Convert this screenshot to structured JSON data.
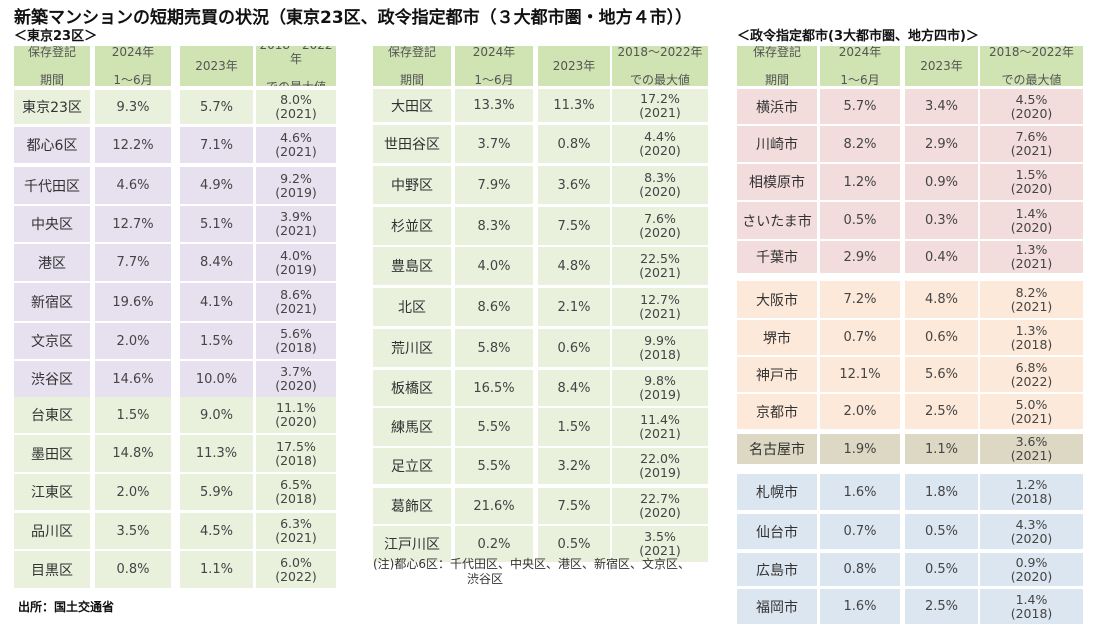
{
  "title": "新築マンションの短期売買の状況（東京23区、政令指定都市（３大都市圏・地方４市））",
  "tokyo_label": "＜東京23区＞",
  "cities_label": "＜政令指定都市(3大都市圏、地方四市)＞",
  "source": "出所：国土交通省",
  "note_line1": "(注)都心6区：千代田区、中央区、港区、新宿区、文京区、",
  "note_line2": "渋谷区",
  "headers": {
    "name": "保存登記期間",
    "v2024": "2024年1～6月",
    "v2023": "2023年",
    "max": "2018～2022年での最大値"
  },
  "colors": {
    "header": "#d0e3b3",
    "green": "#e9f0dc",
    "purple": "#e6e0ef",
    "pink": "#f2dcdc",
    "orange": "#fde9d9",
    "olive": "#ddd8c3",
    "blue": "#dce6f1"
  },
  "left_table": [
    {
      "name": "東京23区",
      "v2024": "9.3%",
      "v2023": "5.7%",
      "max": "8.0%",
      "year": "(2021)",
      "color": "green"
    },
    {
      "name": "都心6区",
      "v2024": "12.2%",
      "v2023": "7.1%",
      "max": "4.6%",
      "year": "(2021)",
      "color": "purple"
    },
    {
      "name": "千代田区",
      "v2024": "4.6%",
      "v2023": "4.9%",
      "max": "9.2%",
      "year": "(2019)",
      "color": "purple"
    },
    {
      "name": "中央区",
      "v2024": "12.7%",
      "v2023": "5.1%",
      "max": "3.9%",
      "year": "(2021)",
      "color": "purple"
    },
    {
      "name": "港区",
      "v2024": "7.7%",
      "v2023": "8.4%",
      "max": "4.0%",
      "year": "(2019)",
      "color": "purple"
    },
    {
      "name": "新宿区",
      "v2024": "19.6%",
      "v2023": "4.1%",
      "max": "8.6%",
      "year": "(2021)",
      "color": "purple"
    },
    {
      "name": "文京区",
      "v2024": "2.0%",
      "v2023": "1.5%",
      "max": "5.6%",
      "year": "(2018)",
      "color": "purple"
    },
    {
      "name": "渋谷区",
      "v2024": "14.6%",
      "v2023": "10.0%",
      "max": "3.7%",
      "year": "(2020)",
      "color": "purple"
    },
    {
      "name": "台東区",
      "v2024": "1.5%",
      "v2023": "9.0%",
      "max": "11.1%",
      "year": "(2020)",
      "color": "green"
    },
    {
      "name": "墨田区",
      "v2024": "14.8%",
      "v2023": "11.3%",
      "max": "17.5%",
      "year": "(2018)",
      "color": "green"
    },
    {
      "name": "江東区",
      "v2024": "2.0%",
      "v2023": "5.9%",
      "max": "6.5%",
      "year": "(2018)",
      "color": "green"
    },
    {
      "name": "品川区",
      "v2024": "3.5%",
      "v2023": "4.5%",
      "max": "6.3%",
      "year": "(2021)",
      "color": "green"
    },
    {
      "name": "目黒区",
      "v2024": "0.8%",
      "v2023": "1.1%",
      "max": "6.0%",
      "year": "(2022)",
      "color": "green"
    }
  ],
  "middle_table": [
    {
      "name": "大田区",
      "v2024": "13.3%",
      "v2023": "11.3%",
      "max": "17.2%",
      "year": "(2021)",
      "color": "green"
    },
    {
      "name": "世田谷区",
      "v2024": "3.7%",
      "v2023": "0.8%",
      "max": "4.4%",
      "year": "(2020)",
      "color": "green"
    },
    {
      "name": "中野区",
      "v2024": "7.9%",
      "v2023": "3.6%",
      "max": "8.3%",
      "year": "(2020)",
      "color": "green"
    },
    {
      "name": "杉並区",
      "v2024": "8.3%",
      "v2023": "7.5%",
      "max": "7.6%",
      "year": "(2020)",
      "color": "green"
    },
    {
      "name": "豊島区",
      "v2024": "4.0%",
      "v2023": "4.8%",
      "max": "22.5%",
      "year": "(2021)",
      "color": "green"
    },
    {
      "name": "北区",
      "v2024": "8.6%",
      "v2023": "2.1%",
      "max": "12.7%",
      "year": "(2021)",
      "color": "green"
    },
    {
      "name": "荒川区",
      "v2024": "5.8%",
      "v2023": "0.6%",
      "max": "9.9%",
      "year": "(2018)",
      "color": "green"
    },
    {
      "name": "板橋区",
      "v2024": "16.5%",
      "v2023": "8.4%",
      "max": "9.8%",
      "year": "(2019)",
      "color": "green"
    },
    {
      "name": "練馬区",
      "v2024": "5.5%",
      "v2023": "1.5%",
      "max": "11.4%",
      "year": "(2021)",
      "color": "green"
    },
    {
      "name": "足立区",
      "v2024": "5.5%",
      "v2023": "3.2%",
      "max": "22.0%",
      "year": "(2019)",
      "color": "green"
    },
    {
      "name": "葛飾区",
      "v2024": "21.6%",
      "v2023": "7.5%",
      "max": "22.7%",
      "year": "(2020)",
      "color": "green"
    },
    {
      "name": "江戸川区",
      "v2024": "0.2%",
      "v2023": "0.5%",
      "max": "3.5%",
      "year": "(2021)",
      "color": "green"
    }
  ],
  "right_table": [
    {
      "name": "横浜市",
      "v2024": "5.7%",
      "v2023": "3.4%",
      "max": "4.5%",
      "year": "(2020)",
      "color": "pink"
    },
    {
      "name": "川崎市",
      "v2024": "8.2%",
      "v2023": "2.9%",
      "max": "7.6%",
      "year": "(2021)",
      "color": "pink"
    },
    {
      "name": "相模原市",
      "v2024": "1.2%",
      "v2023": "0.9%",
      "max": "1.5%",
      "year": "(2020)",
      "color": "pink"
    },
    {
      "name": "さいたま市",
      "v2024": "0.5%",
      "v2023": "0.3%",
      "max": "1.4%",
      "year": "(2020)",
      "color": "pink"
    },
    {
      "name": "千葉市",
      "v2024": "2.9%",
      "v2023": "0.4%",
      "max": "1.3%",
      "year": "(2021)",
      "color": "pink"
    },
    {
      "name": "大阪市",
      "v2024": "7.2%",
      "v2023": "4.8%",
      "max": "8.2%",
      "year": "(2021)",
      "color": "orange"
    },
    {
      "name": "堺市",
      "v2024": "0.7%",
      "v2023": "0.6%",
      "max": "1.3%",
      "year": "(2018)",
      "color": "orange"
    },
    {
      "name": "神戸市",
      "v2024": "12.1%",
      "v2023": "5.6%",
      "max": "6.8%",
      "year": "(2022)",
      "color": "orange"
    },
    {
      "name": "京都市",
      "v2024": "2.0%",
      "v2023": "2.5%",
      "max": "5.0%",
      "year": "(2021)",
      "color": "orange"
    },
    {
      "name": "名古屋市",
      "v2024": "1.9%",
      "v2023": "1.1%",
      "max": "3.6%",
      "year": "(2021)",
      "color": "olive"
    },
    {
      "name": "札幌市",
      "v2024": "1.6%",
      "v2023": "1.8%",
      "max": "1.2%",
      "year": "(2018)",
      "color": "blue"
    },
    {
      "name": "仙台市",
      "v2024": "0.7%",
      "v2023": "0.5%",
      "max": "4.3%",
      "year": "(2020)",
      "color": "blue"
    },
    {
      "name": "広島市",
      "v2024": "0.8%",
      "v2023": "0.5%",
      "max": "0.9%",
      "year": "(2020)",
      "color": "blue"
    },
    {
      "name": "福岡市",
      "v2024": "1.6%",
      "v2023": "2.5%",
      "max": "1.4%",
      "year": "(2018)",
      "color": "blue"
    }
  ]
}
